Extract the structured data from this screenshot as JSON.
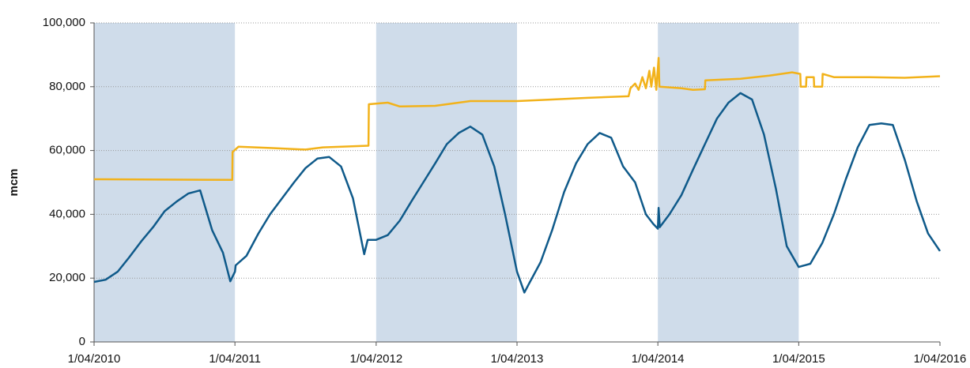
{
  "chart_data": {
    "type": "line",
    "y_label": "mcm",
    "xlim": [
      "2010-04-01",
      "2016-04-01"
    ],
    "xticks": [
      {
        "value": "2010-04-01",
        "label": "1/04/2010"
      },
      {
        "value": "2011-04-01",
        "label": "1/04/2011"
      },
      {
        "value": "2012-04-01",
        "label": "1/04/2012"
      },
      {
        "value": "2013-04-01",
        "label": "1/04/2013"
      },
      {
        "value": "2014-04-01",
        "label": "1/04/2014"
      },
      {
        "value": "2015-04-01",
        "label": "1/04/2015"
      },
      {
        "value": "2016-04-01",
        "label": "1/04/2016"
      }
    ],
    "ylim": [
      0,
      100000
    ],
    "yticks": [
      0,
      {
        "value": 20000,
        "label": "20,000"
      },
      {
        "value": 40000,
        "label": "40,000"
      },
      {
        "value": 60000,
        "label": "60,000"
      },
      {
        "value": 80000,
        "label": "80,000"
      },
      {
        "value": 100000,
        "label": "100,000"
      }
    ],
    "grid": true,
    "shaded_periods": [
      [
        "2010-04-01",
        "2011-04-01"
      ],
      [
        "2012-04-01",
        "2013-04-01"
      ],
      [
        "2014-04-01",
        "2015-04-01"
      ]
    ],
    "shade_color": "#cfdcea",
    "series": [
      {
        "color": "#f2b21a",
        "x": [
          "2010-04-01",
          "2011-03-25",
          "2011-03-26",
          "2011-04-10",
          "2011-07-01",
          "2011-10-01",
          "2011-11-15",
          "2012-03-12",
          "2012-03-13",
          "2012-05-01",
          "2012-06-01",
          "2012-09-01",
          "2012-12-01",
          "2013-04-01",
          "2013-07-01",
          "2013-10-01",
          "2014-01-15",
          "2014-01-20",
          "2014-02-01",
          "2014-02-10",
          "2014-02-20",
          "2014-03-01",
          "2014-03-10",
          "2014-03-15",
          "2014-03-22",
          "2014-03-28",
          "2014-04-03",
          "2014-04-05",
          "2014-06-01",
          "2014-07-01",
          "2014-08-01",
          "2014-08-02",
          "2014-11-01",
          "2015-01-15",
          "2015-03-15",
          "2015-04-05",
          "2015-04-06",
          "2015-04-20",
          "2015-04-21",
          "2015-05-10",
          "2015-05-11",
          "2015-06-01",
          "2015-06-02",
          "2015-07-01",
          "2015-10-01",
          "2016-01-01",
          "2016-04-01"
        ],
        "values": [
          51000,
          50800,
          59500,
          61200,
          60800,
          60300,
          61000,
          61500,
          74500,
          75000,
          73800,
          74000,
          75500,
          75500,
          76000,
          76500,
          77000,
          79500,
          81000,
          79000,
          83000,
          79500,
          85000,
          80000,
          86000,
          79000,
          89000,
          80000,
          79500,
          79000,
          79200,
          82000,
          82500,
          83500,
          84500,
          84000,
          80000,
          80000,
          83000,
          83000,
          80000,
          80000,
          84000,
          83000,
          83000,
          82800,
          83300
        ]
      },
      {
        "color": "#0f5a8a",
        "x": [
          "2010-04-01",
          "2010-05-01",
          "2010-06-01",
          "2010-07-01",
          "2010-08-01",
          "2010-09-01",
          "2010-10-01",
          "2010-11-01",
          "2010-12-01",
          "2011-01-01",
          "2011-02-01",
          "2011-03-01",
          "2011-03-20",
          "2011-04-01",
          "2011-04-03",
          "2011-05-01",
          "2011-06-01",
          "2011-07-01",
          "2011-08-01",
          "2011-09-01",
          "2011-10-01",
          "2011-11-01",
          "2011-12-01",
          "2012-01-01",
          "2012-02-01",
          "2012-03-01",
          "2012-03-10",
          "2012-04-01",
          "2012-05-01",
          "2012-06-01",
          "2012-07-01",
          "2012-08-01",
          "2012-09-01",
          "2012-10-01",
          "2012-11-01",
          "2012-12-01",
          "2013-01-01",
          "2013-02-01",
          "2013-03-01",
          "2013-04-01",
          "2013-04-20",
          "2013-05-01",
          "2013-06-01",
          "2013-07-01",
          "2013-08-01",
          "2013-09-01",
          "2013-10-01",
          "2013-11-01",
          "2013-12-01",
          "2014-01-01",
          "2014-02-01",
          "2014-03-01",
          "2014-03-20",
          "2014-04-01",
          "2014-04-03",
          "2014-04-06",
          "2014-05-01",
          "2014-06-01",
          "2014-07-01",
          "2014-08-01",
          "2014-09-01",
          "2014-10-01",
          "2014-11-01",
          "2014-12-01",
          "2015-01-01",
          "2015-02-01",
          "2015-03-01",
          "2015-04-01",
          "2015-05-01",
          "2015-06-01",
          "2015-07-01",
          "2015-08-01",
          "2015-09-01",
          "2015-10-01",
          "2015-11-01",
          "2015-12-01",
          "2016-01-01",
          "2016-02-01",
          "2016-03-01",
          "2016-04-01"
        ],
        "values": [
          18800,
          19500,
          22000,
          26500,
          31500,
          36000,
          41000,
          44000,
          46500,
          47500,
          35000,
          28000,
          19000,
          22000,
          24000,
          27000,
          34000,
          40000,
          45000,
          50000,
          54500,
          57500,
          58000,
          55000,
          45000,
          27500,
          32000,
          32000,
          33500,
          38000,
          44000,
          50000,
          56000,
          62000,
          65500,
          67500,
          65000,
          55000,
          40000,
          22000,
          15500,
          18000,
          25000,
          35000,
          47000,
          56000,
          62000,
          65500,
          64000,
          55000,
          50000,
          40000,
          37000,
          35500,
          42000,
          36000,
          40000,
          46000,
          54000,
          62000,
          70000,
          75000,
          78000,
          76000,
          65000,
          48000,
          30000,
          23500,
          24500,
          31000,
          40000,
          51000,
          61000,
          68000,
          68500,
          68000,
          57000,
          44000,
          34000,
          28500
        ]
      }
    ]
  }
}
